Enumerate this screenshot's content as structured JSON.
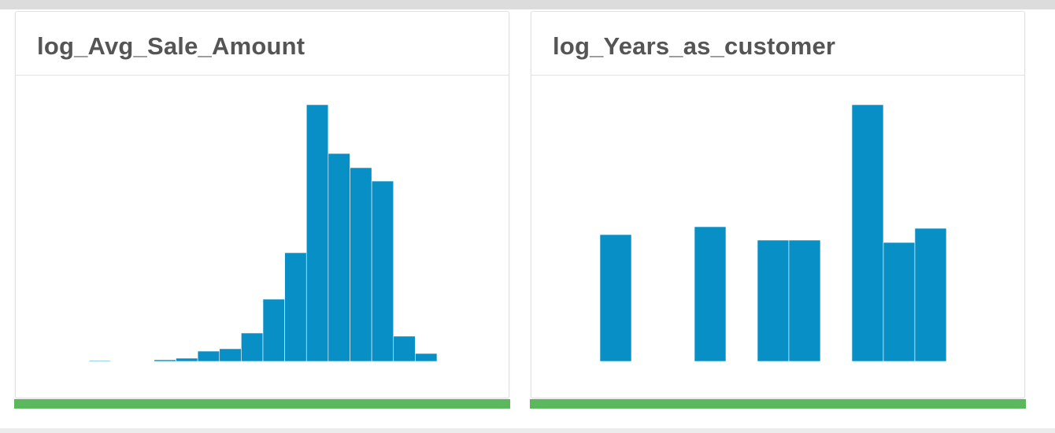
{
  "chart_data": [
    {
      "type": "bar",
      "title": "log_Avg_Sale_Amount",
      "color": "#088fc6",
      "values": [
        1,
        0,
        0,
        2,
        4,
        13,
        16,
        36,
        79,
        138,
        326,
        264,
        246,
        229,
        32,
        10
      ],
      "ylim": [
        0,
        326
      ]
    },
    {
      "type": "bar",
      "title": "log_Years_as_customer",
      "color": "#088fc6",
      "values": [
        161,
        0,
        0,
        171,
        0,
        154,
        154,
        0,
        326,
        151,
        169
      ],
      "ylim": [
        0,
        326
      ]
    }
  ]
}
